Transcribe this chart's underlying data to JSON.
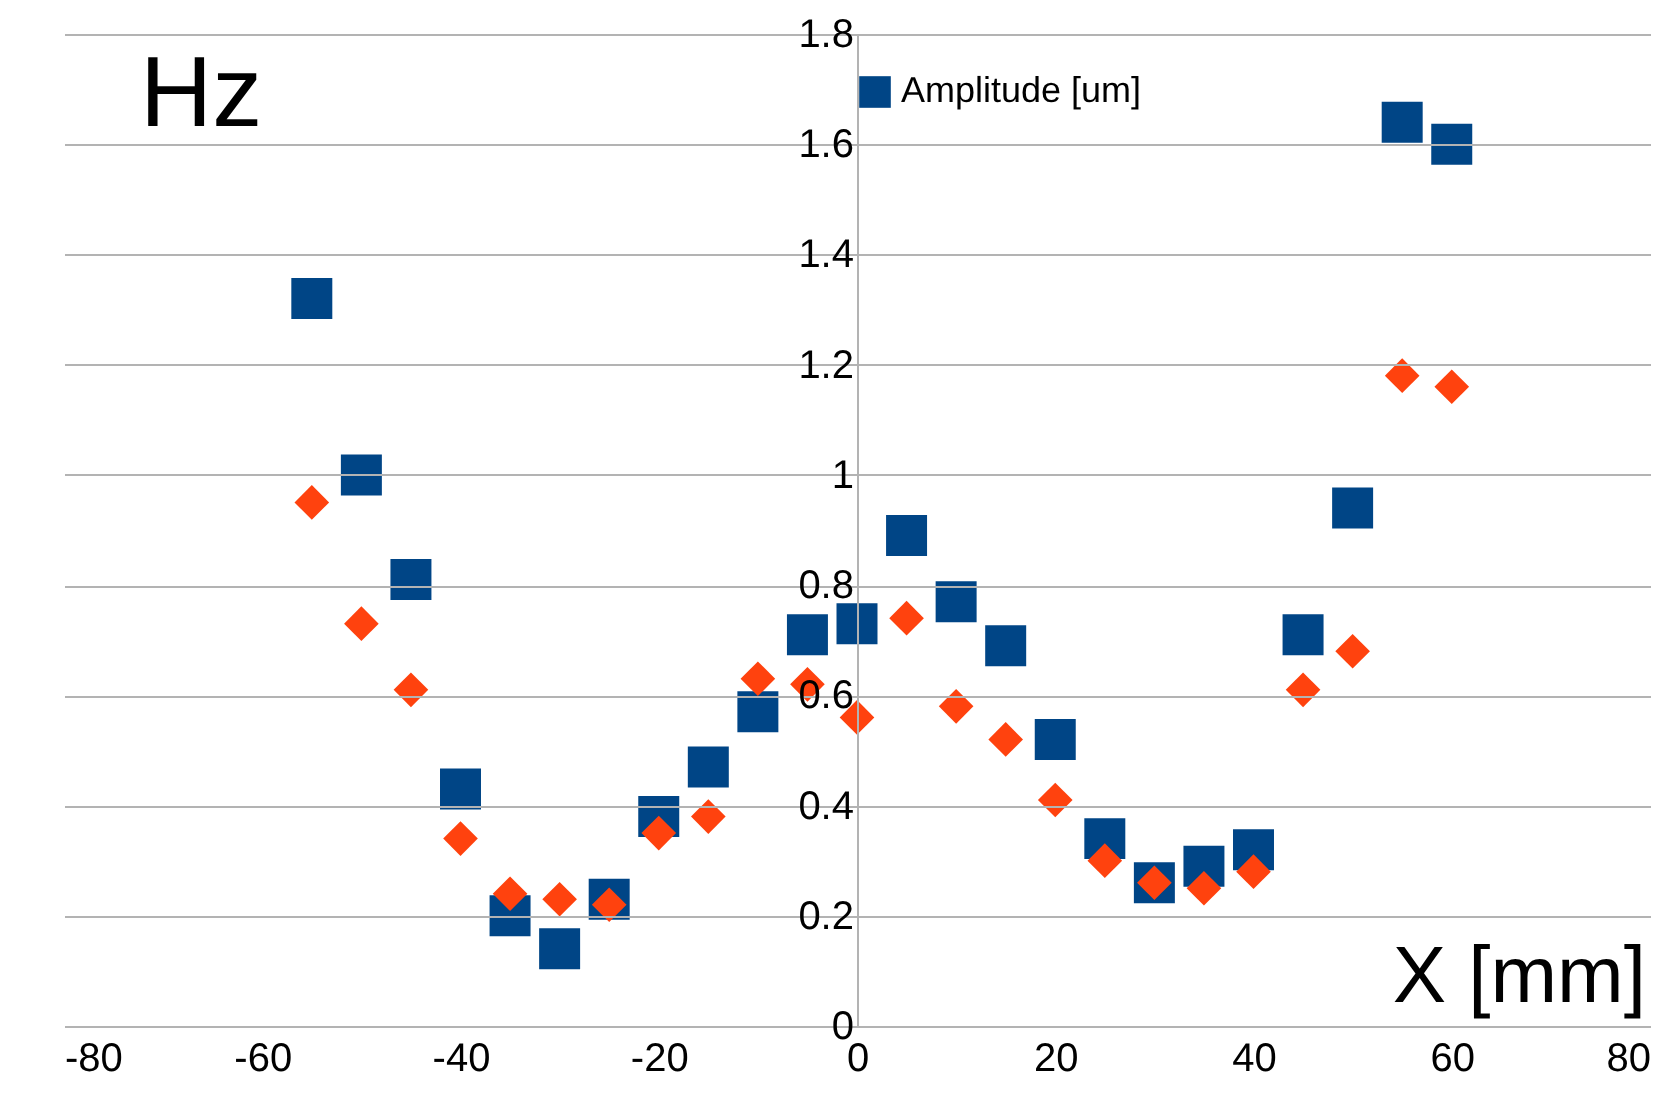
{
  "chart_data": {
    "type": "scatter",
    "xlabel": "X [mm]",
    "ylabel": "Hz",
    "x": [
      -55,
      -50,
      -45,
      -40,
      -35,
      -30,
      -25,
      -20,
      -15,
      -10,
      -5,
      0,
      5,
      10,
      15,
      20,
      25,
      30,
      35,
      40,
      45,
      50,
      55,
      60
    ],
    "series": [
      {
        "name": "Amplitude [um]",
        "color": "#004586",
        "marker": "square",
        "values": [
          1.32,
          1.0,
          0.81,
          0.43,
          0.2,
          0.14,
          0.23,
          0.38,
          0.47,
          0.57,
          0.71,
          0.73,
          0.89,
          0.77,
          0.69,
          0.52,
          0.34,
          0.26,
          0.29,
          0.32,
          0.71,
          0.94,
          1.64,
          1.6
        ]
      },
      {
        "color": "#ff420e",
        "marker": "diamond",
        "values": [
          0.95,
          0.73,
          0.61,
          0.34,
          0.24,
          0.23,
          0.22,
          0.35,
          0.38,
          0.63,
          0.62,
          0.56,
          0.74,
          0.58,
          0.52,
          0.41,
          0.3,
          0.26,
          0.25,
          0.28,
          0.61,
          0.68,
          1.18,
          1.16
        ]
      }
    ],
    "xlim": [
      -80,
      80
    ],
    "xticks": [
      -80,
      -60,
      -40,
      -20,
      0,
      20,
      40,
      60,
      80
    ],
    "ylim": [
      0,
      1.8
    ],
    "yticks": [
      0,
      0.2,
      0.4,
      0.6,
      0.8,
      1,
      1.2,
      1.4,
      1.6,
      1.8
    ],
    "grid": "y",
    "legend": "top"
  }
}
